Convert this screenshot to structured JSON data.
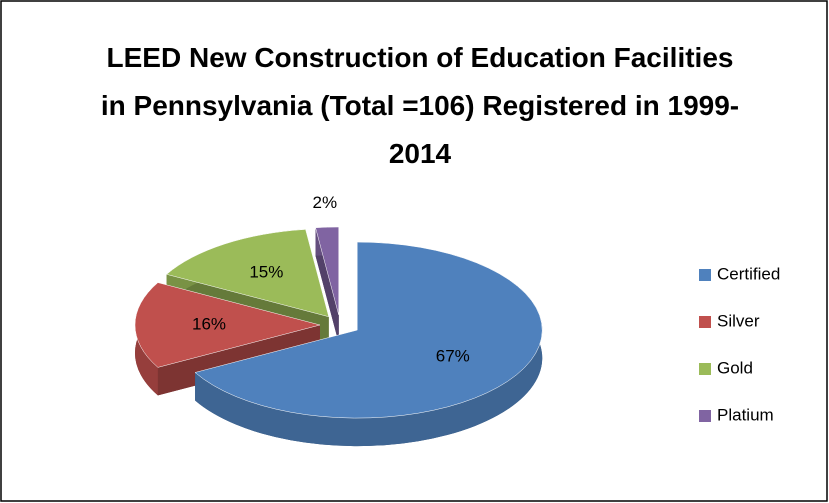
{
  "chart_data": {
    "type": "pie",
    "title": "LEED New Construction of Education Facilities in Pennsylvania (Total =106) Registered in 1999-2014",
    "categories": [
      "Certified",
      "Silver",
      "Gold",
      "Platium"
    ],
    "values": [
      67,
      16,
      15,
      2
    ],
    "value_labels": [
      "67%",
      "16%",
      "15%",
      "2%"
    ],
    "colors": [
      "#4f81bd",
      "#c0504d",
      "#9bbb59",
      "#8064a2"
    ],
    "legend": "right"
  }
}
